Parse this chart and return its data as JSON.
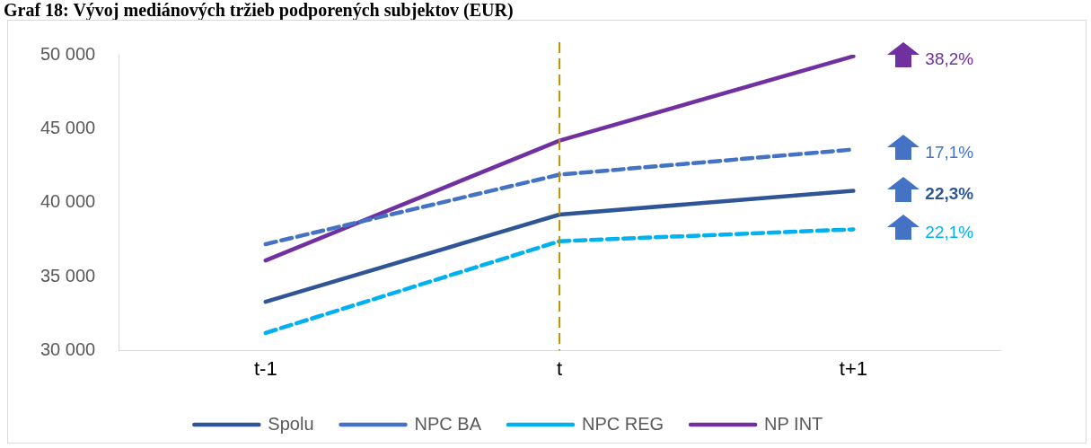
{
  "chart_data": {
    "type": "line",
    "title": "Graf 18: Vývoj mediánových tržieb podporených subjektov (EUR)",
    "categories": [
      "t-1",
      "t",
      "t+1"
    ],
    "series": [
      {
        "name": "Spolu",
        "color": "#2f5597",
        "values": [
          33300,
          39200,
          40800
        ],
        "line_style": "solid"
      },
      {
        "name": "NPC BA",
        "color": "#4472c4",
        "values": [
          37200,
          41900,
          43600
        ],
        "line_style": "dashed"
      },
      {
        "name": "NPC REG",
        "color": "#00b0f0",
        "values": [
          31200,
          37400,
          38200
        ],
        "line_style": "dashed"
      },
      {
        "name": "NP INT",
        "color": "#7030a0",
        "values": [
          36100,
          44200,
          49900
        ],
        "line_style": "solid"
      }
    ],
    "ylim": [
      30000,
      50000
    ],
    "yticks": [
      30000,
      35000,
      40000,
      45000,
      50000
    ],
    "grid": false,
    "legend": "bottom",
    "marker": "none",
    "ref_lines": [
      {
        "axis": "x",
        "value": "t",
        "color": "#bf9000",
        "line_style": "dashed"
      }
    ],
    "annotations": [
      "38,2%",
      "17,1%",
      "22,3%",
      "22,1%"
    ]
  }
}
